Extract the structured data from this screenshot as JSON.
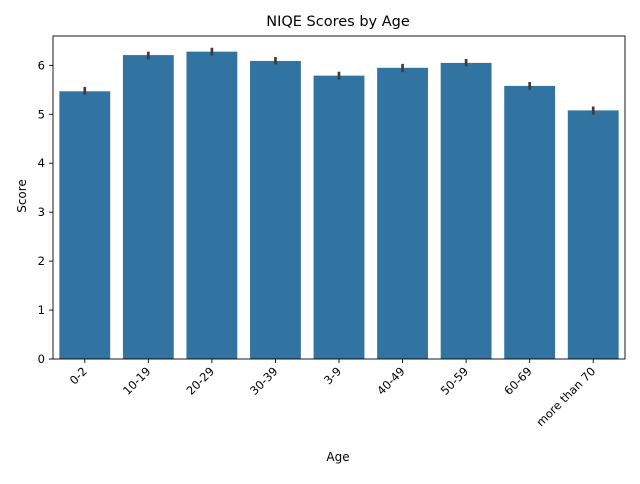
{
  "chart_data": {
    "type": "bar",
    "title": "NIQE Scores by Age",
    "xlabel": "Age",
    "ylabel": "Score",
    "categories": [
      "0-2",
      "10-19",
      "20-29",
      "30-39",
      "3-9",
      "40-49",
      "50-59",
      "60-69",
      "more than 70"
    ],
    "values": [
      5.47,
      6.21,
      6.28,
      6.09,
      5.79,
      5.95,
      6.05,
      5.58,
      5.08
    ],
    "error_bars": [
      [
        5.4,
        5.56
      ],
      [
        6.12,
        6.28
      ],
      [
        6.2,
        6.36
      ],
      [
        6.02,
        6.17
      ],
      [
        5.71,
        5.87
      ],
      [
        5.86,
        6.03
      ],
      [
        5.98,
        6.13
      ],
      [
        5.5,
        5.66
      ],
      [
        4.99,
        5.16
      ]
    ],
    "ylim": [
      0,
      6.6
    ],
    "yticks": [
      0,
      1,
      2,
      3,
      4,
      5,
      6
    ],
    "bar_color": "#3274a1",
    "errorbar_color": "#3d3d3d",
    "grid": false
  }
}
